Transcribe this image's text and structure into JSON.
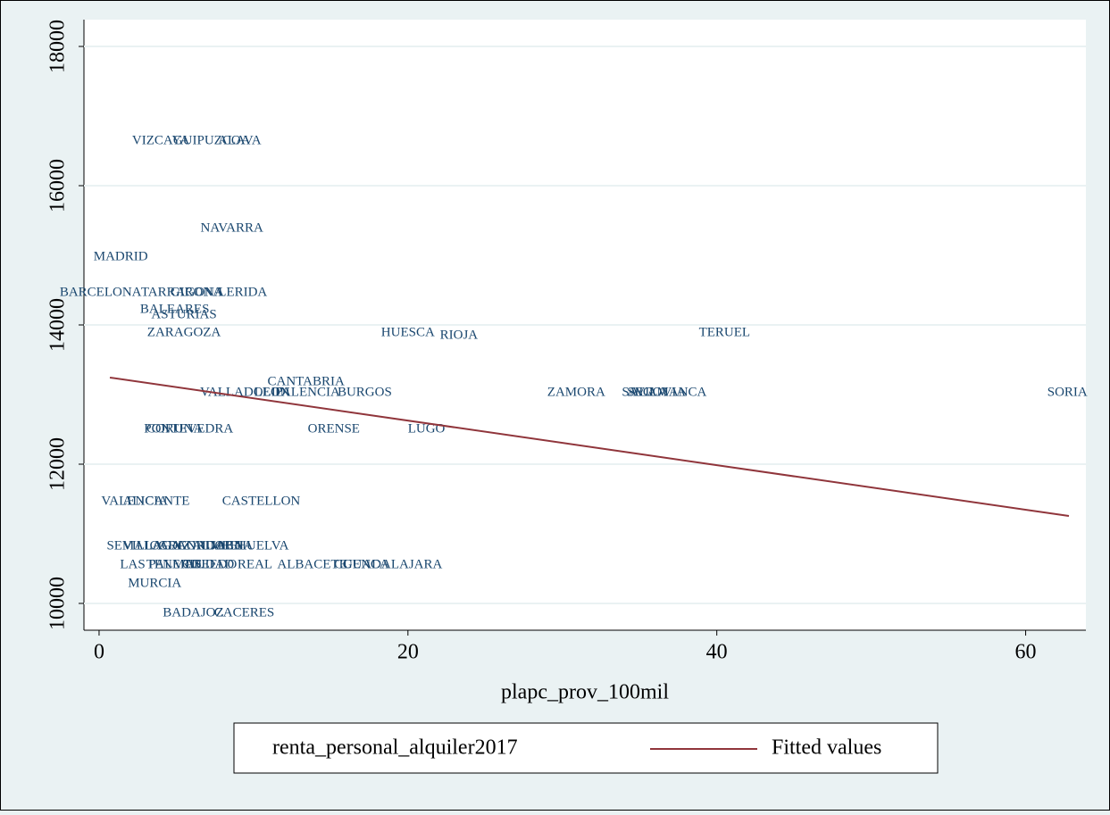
{
  "chart_data": {
    "type": "scatter",
    "x_label": "plapc_prov_100mil",
    "xlim": [
      -0.98,
      63.9
    ],
    "ylim": [
      9615,
      18385
    ],
    "xticks": [
      0,
      20,
      40,
      60
    ],
    "yticks": [
      10000,
      12000,
      14000,
      16000,
      18000
    ],
    "grid": true,
    "series": [
      {
        "name": "renta_personal_alquiler2017",
        "color": "#1a476f",
        "labels": [
          "VIZCAYA",
          "GUIPUZCOA",
          "ALAVA",
          "NAVARRA",
          "MADRID",
          "BARCELONA",
          "TARRAGONA",
          "GIRONA",
          "LERIDA",
          "BALEARES",
          "ASTURIAS",
          "ZARAGOZA",
          "HUESCA",
          "RIOJA",
          "TERUEL",
          "CANTABRIA",
          "VALLADOLID",
          "LEON",
          "PALENCIA",
          "BURGOS",
          "ZAMORA",
          "AVILA",
          "SEGOVIA",
          "SALAMANCA",
          "SORIA",
          "PONTEVEDRA",
          "CORUNA",
          "ORENSE",
          "LUGO",
          "VALENCIA",
          "ALICANTE",
          "CASTELLON",
          "SEVILLA",
          "MALAGA",
          "CADIZ",
          "GRANADA",
          "CORDOBA",
          "ALMERIA",
          "JAEN",
          "HUELVA",
          "LAS PALMAS",
          "TENERIFE",
          "TOLEDO",
          "CIUDAD REAL",
          "ALBACETE",
          "CUENCA",
          "GUADALAJARA",
          "MURCIA",
          "BADAJOZ",
          "CACERES"
        ],
        "x": [
          4.0,
          7.3,
          9.1,
          8.6,
          1.4,
          0.1,
          5.4,
          6.3,
          9.3,
          4.9,
          5.5,
          5.5,
          20.0,
          23.3,
          40.5,
          13.4,
          9.3,
          11.2,
          13.5,
          17.2,
          30.9,
          35.5,
          36.1,
          36.6,
          62.7,
          5.8,
          4.9,
          15.2,
          21.2,
          2.3,
          3.7,
          10.5,
          2.3,
          3.4,
          4.6,
          6.0,
          7.2,
          8.0,
          8.3,
          10.6,
          4.0,
          5.1,
          7.2,
          8.3,
          13.8,
          17.0,
          19.0,
          3.6,
          6.1,
          9.4
        ],
        "values": [
          16641,
          16641,
          16641,
          15385,
          14974,
          14462,
          14462,
          14462,
          14462,
          14218,
          14141,
          13885,
          13885,
          13846,
          13885,
          13179,
          13026,
          13026,
          13026,
          13026,
          13026,
          13026,
          13026,
          13026,
          13026,
          12500,
          12500,
          12500,
          12500,
          11462,
          11462,
          11462,
          10821,
          10821,
          10821,
          10821,
          10821,
          10821,
          10821,
          10821,
          10551,
          10551,
          10551,
          10551,
          10551,
          10551,
          10551,
          10282,
          9859,
          9859
        ]
      },
      {
        "name": "Fitted values",
        "type": "line",
        "color": "#90353b",
        "x": [
          0.7,
          62.8
        ],
        "values": [
          13244,
          11256
        ]
      }
    ]
  }
}
